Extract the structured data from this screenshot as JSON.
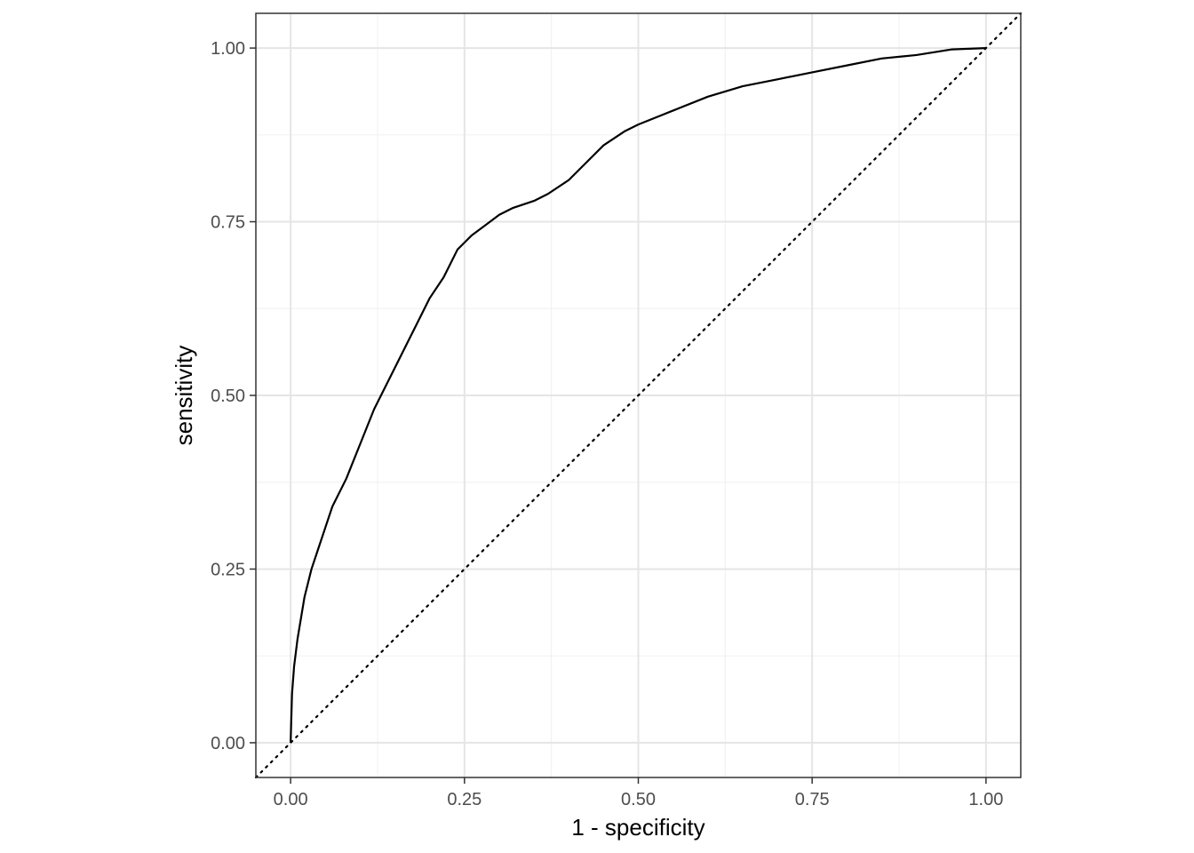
{
  "chart_data": {
    "type": "line",
    "title": "",
    "xlabel": "1 - specificity",
    "ylabel": "sensitivity",
    "xlim": [
      -0.05,
      1.05
    ],
    "ylim": [
      -0.05,
      1.05
    ],
    "x_ticks": [
      0,
      0.25,
      0.5,
      0.75,
      1
    ],
    "x_tick_labels": [
      "0.00",
      "0.25",
      "0.50",
      "0.75",
      "1.00"
    ],
    "y_ticks": [
      0,
      0.25,
      0.5,
      0.75,
      1
    ],
    "y_tick_labels": [
      "0.00",
      "0.25",
      "0.50",
      "0.75",
      "1.00"
    ],
    "grid": true,
    "legend": "none",
    "series": [
      {
        "style": "solid",
        "color": "#000000",
        "x": [
          0,
          0.002,
          0.005,
          0.01,
          0.015,
          0.02,
          0.025,
          0.03,
          0.04,
          0.05,
          0.06,
          0.08,
          0.1,
          0.12,
          0.14,
          0.16,
          0.18,
          0.2,
          0.22,
          0.24,
          0.25,
          0.26,
          0.28,
          0.3,
          0.32,
          0.35,
          0.37,
          0.4,
          0.42,
          0.45,
          0.48,
          0.5,
          0.55,
          0.6,
          0.65,
          0.7,
          0.75,
          0.8,
          0.85,
          0.9,
          0.95,
          1.0
        ],
        "y": [
          0,
          0.07,
          0.11,
          0.15,
          0.18,
          0.21,
          0.23,
          0.25,
          0.28,
          0.31,
          0.34,
          0.38,
          0.43,
          0.48,
          0.52,
          0.56,
          0.6,
          0.64,
          0.67,
          0.71,
          0.72,
          0.73,
          0.745,
          0.76,
          0.77,
          0.78,
          0.79,
          0.81,
          0.83,
          0.86,
          0.88,
          0.89,
          0.91,
          0.93,
          0.945,
          0.955,
          0.965,
          0.975,
          0.985,
          0.99,
          0.998,
          1.0
        ]
      },
      {
        "style": "dotted",
        "color": "#000000",
        "x": [
          -0.05,
          1.05
        ],
        "y": [
          -0.05,
          1.05
        ]
      }
    ]
  }
}
